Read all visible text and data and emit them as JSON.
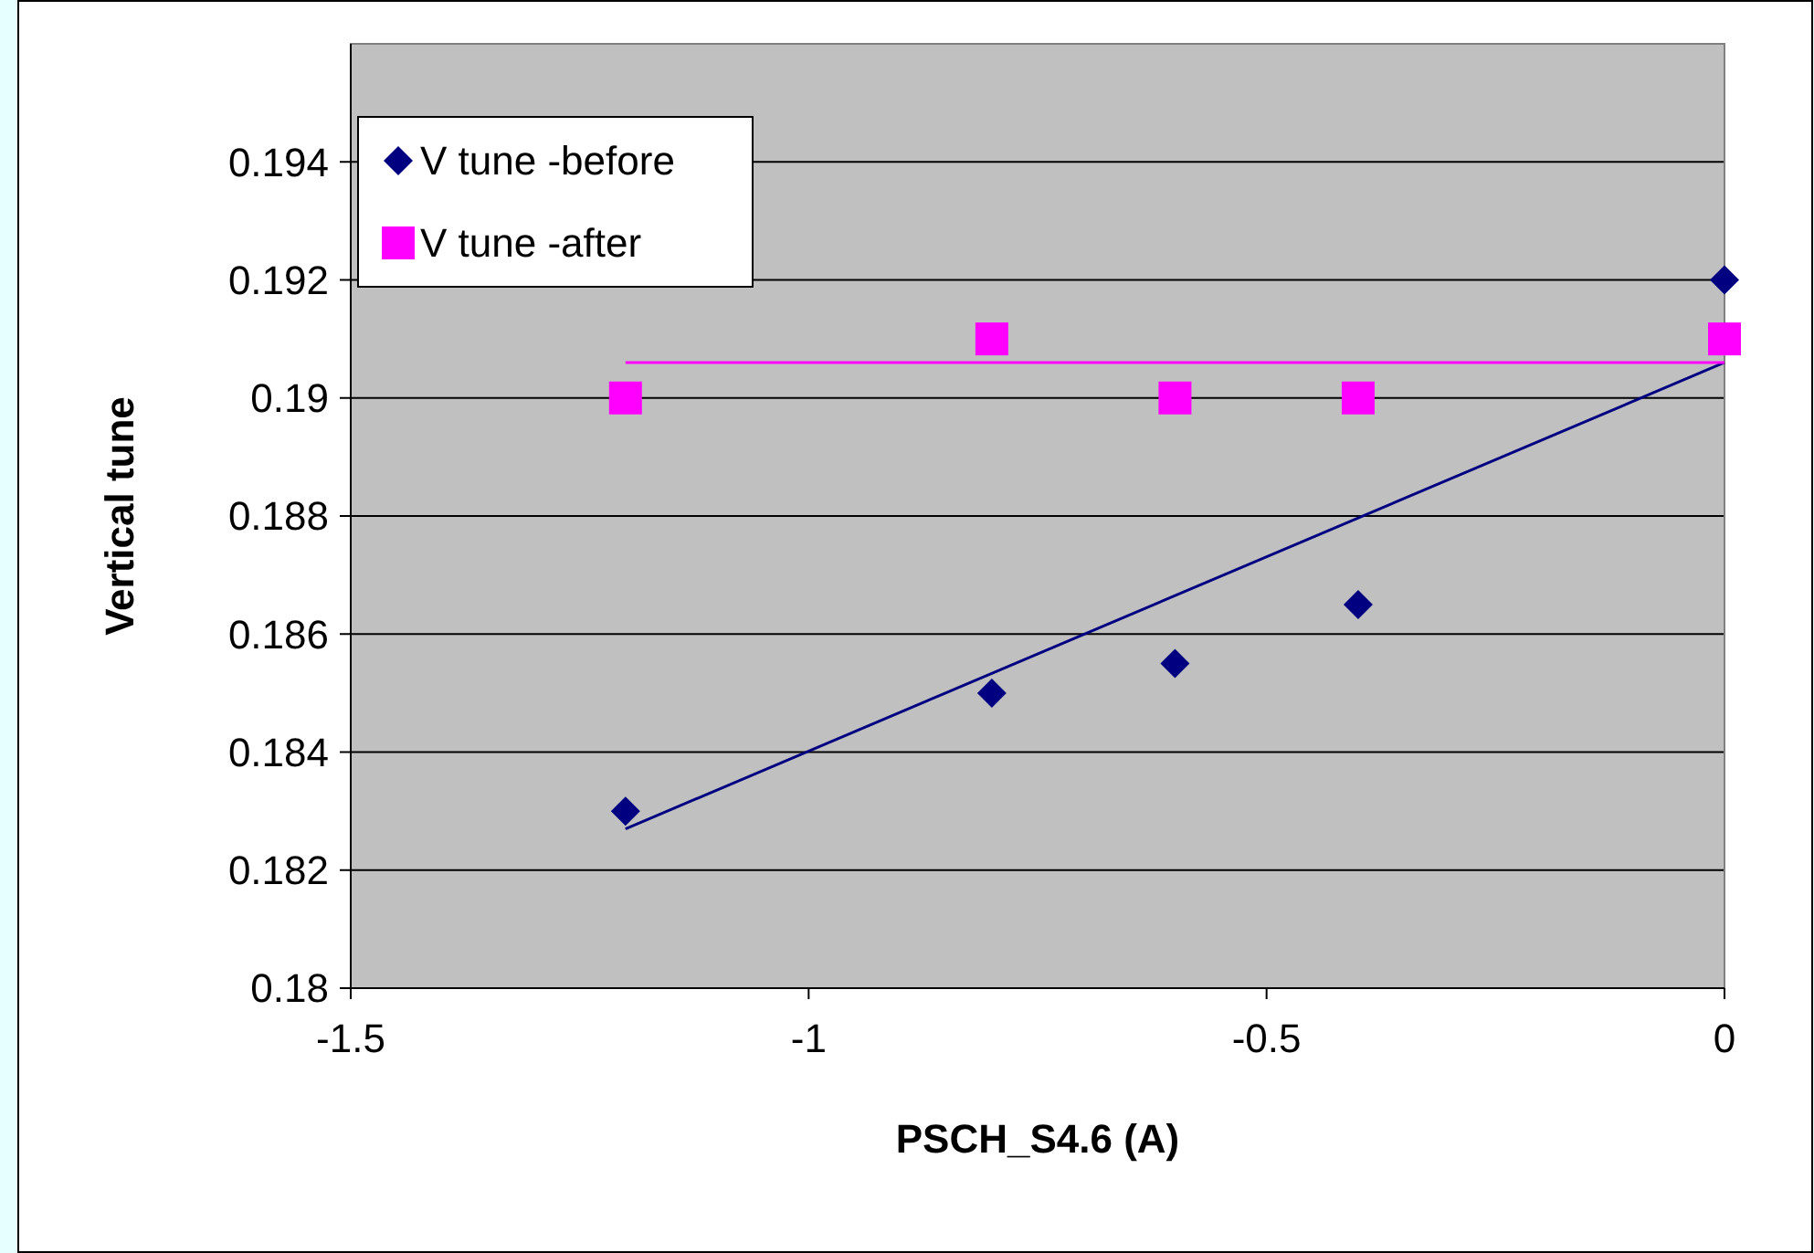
{
  "chart_data": {
    "type": "scatter",
    "xlabel": "PSCH_S4.6 (A)",
    "ylabel": "Vertical tune",
    "xlim": [
      -1.5,
      0
    ],
    "xticks": [
      -1.5,
      -1,
      -0.5,
      0
    ],
    "ylim": [
      0.18,
      0.196
    ],
    "yticks": [
      0.18,
      0.182,
      0.184,
      0.186,
      0.188,
      0.19,
      0.192,
      0.194
    ],
    "grid": "y",
    "legend": "top left",
    "series": [
      {
        "name": "V tune -before",
        "color": "#000080",
        "marker": "diamond",
        "x": [
          -1.2,
          -0.8,
          -0.6,
          -0.4,
          0
        ],
        "values": [
          0.183,
          0.185,
          0.1855,
          0.1865,
          0.192
        ]
      },
      {
        "name": "V tune -after",
        "color": "#ff00ff",
        "marker": "square",
        "x": [
          -1.2,
          -0.8,
          -0.6,
          -0.4,
          0
        ],
        "values": [
          0.19,
          0.191,
          0.19,
          0.19,
          0.191
        ]
      },
      {
        "type": "line",
        "color": "#000080",
        "x": [
          -1.2,
          0
        ],
        "values": [
          0.1827,
          0.1906
        ]
      },
      {
        "type": "line",
        "color": "#ff00ff",
        "x": [
          -1.2,
          0
        ],
        "values": [
          0.1906,
          0.1906
        ]
      }
    ]
  }
}
